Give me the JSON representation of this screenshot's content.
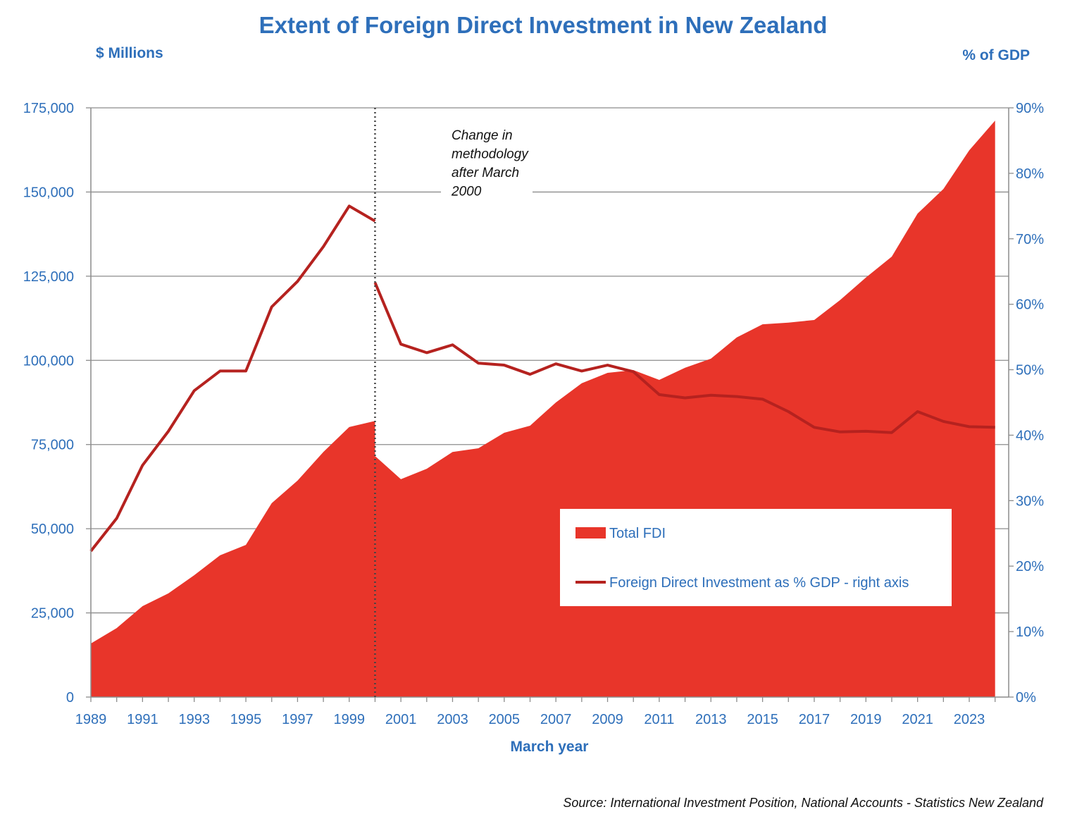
{
  "chart_data": {
    "type": "area+line",
    "title": "Extent of Foreign Direct Investment in New Zealand",
    "ylabel": "$ Millions",
    "y2label": "% of GDP",
    "xlabel": "March year",
    "source": "Source: International Investment Position, National Accounts -  Statistics New Zealand",
    "annotation": [
      "Change in",
      "methodology",
      "after March",
      "2000"
    ],
    "annotation_x": 2000,
    "xlim": [
      1989,
      2024
    ],
    "ylim": [
      0,
      175000
    ],
    "y2lim": [
      0,
      90
    ],
    "yticks": [
      "0",
      "25,000",
      "50,000",
      "75,000",
      "100,000",
      "125,000",
      "150,000",
      "175,000"
    ],
    "ytick_values": [
      0,
      25000,
      50000,
      75000,
      100000,
      125000,
      150000,
      175000
    ],
    "y2ticks": [
      "0%",
      "10%",
      "20%",
      "30%",
      "40%",
      "50%",
      "60%",
      "70%",
      "80%",
      "90%"
    ],
    "y2tick_values": [
      0,
      10,
      20,
      30,
      40,
      50,
      60,
      70,
      80,
      90
    ],
    "xticks": [
      "1989",
      "1991",
      "1993",
      "1995",
      "1997",
      "1999",
      "2001",
      "2003",
      "2005",
      "2007",
      "2009",
      "2011",
      "2013",
      "2015",
      "2017",
      "2019",
      "2021",
      "2023"
    ],
    "grid": true,
    "legend_placement": "bottom-right",
    "colors": {
      "area": "#E8352A",
      "line": "#B5221F",
      "text": "#2E6FBA"
    },
    "series": [
      {
        "name": "Total FDI",
        "type": "area",
        "axis": "left",
        "segments": [
          {
            "x": [
              1989,
              1990,
              1991,
              1992,
              1993,
              1994,
              1995,
              1996,
              1997,
              1998,
              1999,
              2000
            ],
            "values": [
              15900,
              20500,
              27000,
              30800,
              36200,
              42100,
              45200,
              57600,
              64300,
              72800,
              80200,
              82000
            ]
          },
          {
            "x": [
              2000,
              2001,
              2002,
              2003,
              2004,
              2005,
              2006,
              2007,
              2008,
              2009,
              2010,
              2011,
              2012,
              2013,
              2014,
              2015,
              2016,
              2017,
              2018,
              2019,
              2020,
              2021,
              2022,
              2023,
              2024
            ],
            "values": [
              71600,
              64700,
              67800,
              72800,
              73900,
              78500,
              80600,
              87500,
              93200,
              96300,
              97100,
              94200,
              97800,
              100500,
              106800,
              110700,
              111200,
              112000,
              117900,
              124600,
              130800,
              143600,
              150900,
              162400,
              171200
            ]
          }
        ]
      },
      {
        "name": "Foreign Direct Investment as % GDP - right axis",
        "type": "line",
        "axis": "right",
        "segments": [
          {
            "x": [
              1989,
              1990,
              1991,
              1992,
              1993,
              1994,
              1995,
              1996,
              1997,
              1998,
              1999,
              2000
            ],
            "values": [
              22.3,
              27.3,
              35.4,
              40.6,
              46.8,
              49.8,
              49.8,
              59.6,
              63.5,
              68.8,
              75.0,
              72.7
            ]
          },
          {
            "x": [
              2000,
              2001,
              2002,
              2003,
              2004,
              2005,
              2006,
              2007,
              2008,
              2009,
              2010,
              2011,
              2012,
              2013,
              2014,
              2015,
              2016,
              2017,
              2018,
              2019,
              2020,
              2021,
              2022,
              2023,
              2024
            ],
            "values": [
              63.3,
              53.9,
              52.6,
              53.8,
              51.0,
              50.7,
              49.3,
              50.9,
              49.8,
              50.7,
              49.7,
              46.2,
              45.7,
              46.1,
              45.9,
              45.5,
              43.6,
              41.2,
              40.5,
              40.6,
              40.4,
              43.6,
              42.1,
              41.3,
              41.2
            ]
          }
        ]
      }
    ]
  }
}
